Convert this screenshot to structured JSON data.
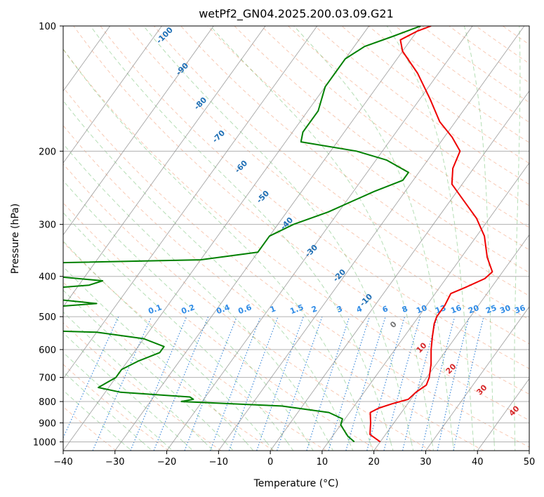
{
  "chart_data": {
    "type": "line",
    "title": "wetPf2_GN04.2025.200.03.09.G21",
    "xlabel": "Temperature (°C)",
    "ylabel": "Pressure (hPa)",
    "xlim": [
      -40,
      50
    ],
    "ylim": [
      1050,
      100
    ],
    "y_scale": "log",
    "grid": true,
    "x_ticks": [
      -40,
      -30,
      -20,
      -10,
      0,
      10,
      20,
      30,
      40,
      50
    ],
    "y_ticks": [
      100,
      200,
      300,
      400,
      500,
      600,
      700,
      800,
      900,
      1000
    ],
    "series": [
      {
        "role": "temperature",
        "color": "#ee0000",
        "points": [
          {
            "p": 1000,
            "t": 20.0
          },
          {
            "p": 960,
            "t": 17.0
          },
          {
            "p": 900,
            "t": 15.5
          },
          {
            "p": 850,
            "t": 14.0
          },
          {
            "p": 830,
            "t": 15.0
          },
          {
            "p": 810,
            "t": 17.0
          },
          {
            "p": 790,
            "t": 19.5
          },
          {
            "p": 760,
            "t": 20.0
          },
          {
            "p": 730,
            "t": 21.0
          },
          {
            "p": 700,
            "t": 20.5
          },
          {
            "p": 650,
            "t": 19.0
          },
          {
            "p": 600,
            "t": 17.0
          },
          {
            "p": 560,
            "t": 15.5
          },
          {
            "p": 520,
            "t": 14.0
          },
          {
            "p": 500,
            "t": 13.5
          },
          {
            "p": 470,
            "t": 13.5
          },
          {
            "p": 440,
            "t": 13.0
          },
          {
            "p": 425,
            "t": 15.0
          },
          {
            "p": 405,
            "t": 17.5
          },
          {
            "p": 390,
            "t": 18.0
          },
          {
            "p": 360,
            "t": 15.0
          },
          {
            "p": 320,
            "t": 11.5
          },
          {
            "p": 290,
            "t": 7.5
          },
          {
            "p": 260,
            "t": 2.0
          },
          {
            "p": 240,
            "t": -2.0
          },
          {
            "p": 220,
            "t": -4.0
          },
          {
            "p": 200,
            "t": -5.0
          },
          {
            "p": 185,
            "t": -8.5
          },
          {
            "p": 170,
            "t": -13.0
          },
          {
            "p": 150,
            "t": -18.0
          },
          {
            "p": 130,
            "t": -24.0
          },
          {
            "p": 115,
            "t": -30.0
          },
          {
            "p": 108,
            "t": -32.0
          },
          {
            "p": 103,
            "t": -30.0
          },
          {
            "p": 100,
            "t": -28.0
          }
        ]
      },
      {
        "role": "dewpoint",
        "color": "#008000",
        "points": [
          {
            "p": 1000,
            "t": 15.0
          },
          {
            "p": 970,
            "t": 13.0
          },
          {
            "p": 940,
            "t": 11.5
          },
          {
            "p": 910,
            "t": 10.0
          },
          {
            "p": 880,
            "t": 9.5
          },
          {
            "p": 850,
            "t": 6.0
          },
          {
            "p": 820,
            "t": -4.0
          },
          {
            "p": 800,
            "t": -24.0
          },
          {
            "p": 790,
            "t": -22.0
          },
          {
            "p": 780,
            "t": -23.0
          },
          {
            "p": 760,
            "t": -37.0
          },
          {
            "p": 740,
            "t": -42.0
          },
          {
            "p": 720,
            "t": -41.0
          },
          {
            "p": 700,
            "t": -40.0
          },
          {
            "p": 670,
            "t": -40.0
          },
          {
            "p": 640,
            "t": -38.0
          },
          {
            "p": 610,
            "t": -35.0
          },
          {
            "p": 590,
            "t": -35.0
          },
          {
            "p": 565,
            "t": -40.0
          },
          {
            "p": 545,
            "t": -50.0
          },
          {
            "p": 535,
            "t": -72.0
          },
          {
            "p": 500,
            "t": -76.0
          },
          {
            "p": 480,
            "t": -68.0
          },
          {
            "p": 465,
            "t": -54.0
          },
          {
            "p": 450,
            "t": -66.0
          },
          {
            "p": 430,
            "t": -68.0
          },
          {
            "p": 420,
            "t": -58.0
          },
          {
            "p": 410,
            "t": -56.0
          },
          {
            "p": 400,
            "t": -66.0
          },
          {
            "p": 372,
            "t": -72.0
          },
          {
            "p": 365,
            "t": -40.0
          },
          {
            "p": 350,
            "t": -30.0
          },
          {
            "p": 320,
            "t": -30.0
          },
          {
            "p": 300,
            "t": -27.0
          },
          {
            "p": 280,
            "t": -22.0
          },
          {
            "p": 250,
            "t": -16.0
          },
          {
            "p": 235,
            "t": -12.0
          },
          {
            "p": 225,
            "t": -12.0
          },
          {
            "p": 210,
            "t": -18.0
          },
          {
            "p": 200,
            "t": -25.0
          },
          {
            "p": 190,
            "t": -37.0
          },
          {
            "p": 180,
            "t": -38.0
          },
          {
            "p": 160,
            "t": -38.0
          },
          {
            "p": 140,
            "t": -40.0
          },
          {
            "p": 120,
            "t": -40.0
          },
          {
            "p": 112,
            "t": -38.0
          },
          {
            "p": 106,
            "t": -34.0
          },
          {
            "p": 100,
            "t": -30.0
          }
        ]
      }
    ],
    "dry_adiabat_labels": [
      "-100",
      "-90",
      "-80",
      "-70",
      "-60",
      "-50",
      "-40",
      "-30",
      "-20",
      "-10"
    ],
    "moist_adiabat_labels": [
      "0",
      "10",
      "20",
      "30",
      "40"
    ],
    "mixing_ratio_labels": [
      "0.1",
      "0.2",
      "0.4",
      "0.6",
      "1",
      "1.5",
      "2",
      "3",
      "4",
      "6",
      "8",
      "10",
      "13",
      "16",
      "20",
      "25",
      "30",
      "36"
    ],
    "colors": {
      "isobar_grid": "#b0b0b0",
      "isotherm": "#888888",
      "dry_adiabat": "#f4a582",
      "moist_adiabat": "#2ca02c",
      "mixing_ratio": "#1f77d4"
    }
  }
}
